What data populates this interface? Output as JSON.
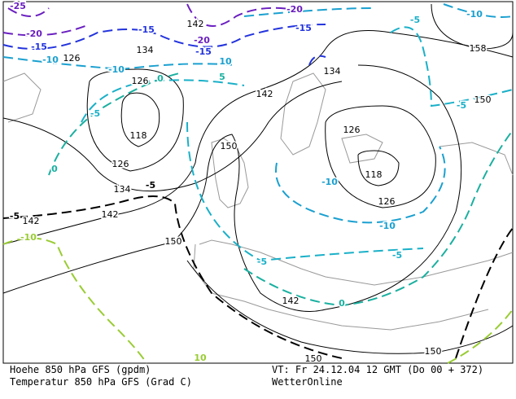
{
  "footer": {
    "left": [
      "Hoehe 850 hPa GFS (gpdm)",
      "Temperatur 850 hPa GFS (Grad C)"
    ],
    "right": [
      "VT: Fr 24.12.04 12 GMT (Do 00 + 372)",
      "WetterOnline"
    ]
  },
  "map": {
    "height_labels": [
      "142",
      "134",
      "126",
      "126",
      "118",
      "126",
      "134",
      "142",
      "142",
      "150",
      "142",
      "150",
      "150",
      "150",
      "142",
      "134",
      "126",
      "118",
      "126",
      "150",
      "158"
    ],
    "temperature_labels": [
      "-25",
      "-20",
      "-20",
      "-20",
      "-15",
      "-15",
      "-15",
      "-15",
      "-10",
      "-10",
      "-10",
      "-10",
      "-10",
      "-5",
      "-5",
      "-5",
      "-5",
      "-5",
      "-5",
      "-5",
      "0",
      "0",
      "0",
      "5",
      "10",
      "-10",
      "10"
    ]
  }
}
